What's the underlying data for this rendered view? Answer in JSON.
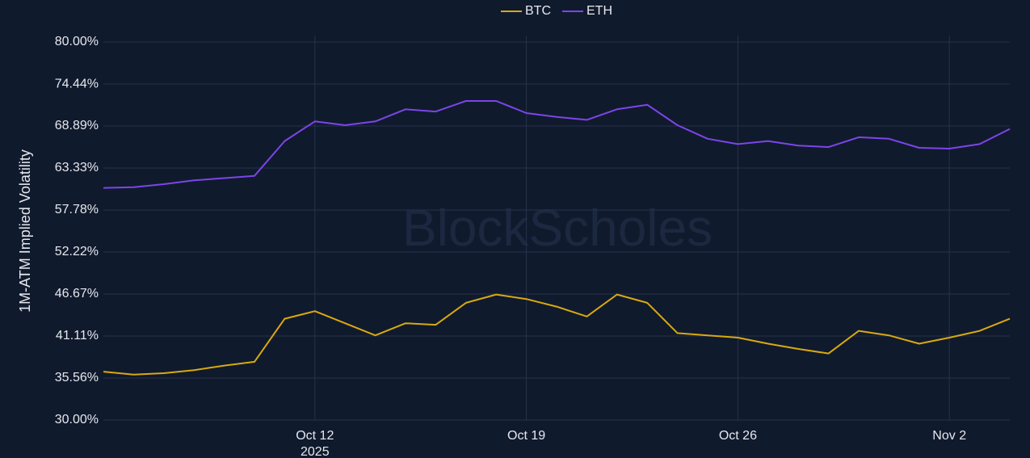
{
  "chart_data": {
    "type": "line",
    "y_label": "1M-ATM Implied Volatility",
    "watermark": "BlockScholes",
    "x": [
      "2025-10-05",
      "2025-10-06",
      "2025-10-07",
      "2025-10-08",
      "2025-10-09",
      "2025-10-10",
      "2025-10-11",
      "2025-10-12",
      "2025-10-13",
      "2025-10-14",
      "2025-10-15",
      "2025-10-16",
      "2025-10-17",
      "2025-10-18",
      "2025-10-19",
      "2025-10-20",
      "2025-10-21",
      "2025-10-22",
      "2025-10-23",
      "2025-10-24",
      "2025-10-25",
      "2025-10-26",
      "2025-10-27",
      "2025-10-28",
      "2025-10-29",
      "2025-10-30",
      "2025-10-31",
      "2025-11-01",
      "2025-11-02",
      "2025-11-03",
      "2025-11-04"
    ],
    "series": [
      {
        "name": "BTC",
        "color": "#d9a90f",
        "values": [
          36.4,
          36.0,
          36.2,
          36.6,
          37.2,
          37.7,
          43.4,
          44.4,
          42.8,
          41.2,
          42.8,
          42.6,
          45.5,
          46.6,
          46.0,
          45.0,
          43.7,
          46.6,
          45.5,
          41.5,
          41.2,
          40.9,
          40.1,
          39.4,
          38.8,
          41.8,
          41.2,
          40.1,
          40.9,
          41.8,
          43.4
        ]
      },
      {
        "name": "ETH",
        "color": "#7c45e8",
        "values": [
          60.7,
          60.8,
          61.2,
          61.7,
          62.0,
          62.3,
          66.9,
          69.5,
          69.0,
          69.5,
          71.1,
          70.8,
          72.2,
          72.2,
          70.6,
          70.1,
          69.7,
          71.1,
          71.7,
          69.0,
          67.2,
          66.5,
          66.9,
          66.3,
          66.1,
          67.4,
          67.2,
          66.0,
          65.9,
          66.5,
          68.5
        ]
      }
    ],
    "xlim": [
      "2025-10-05",
      "2025-11-04"
    ],
    "xticks": [
      {
        "value": "2025-10-12",
        "label": "Oct 12"
      },
      {
        "value": "2025-10-19",
        "label": "Oct 19"
      },
      {
        "value": "2025-10-26",
        "label": "Oct 26"
      },
      {
        "value": "2025-11-02",
        "label": "Nov 2"
      }
    ],
    "xtick_year": "2025",
    "ylim": [
      30,
      80
    ],
    "yticks": [
      {
        "value": 30,
        "label": "30.00%"
      },
      {
        "value": 35.56,
        "label": "35.56%"
      },
      {
        "value": 41.11,
        "label": "41.11%"
      },
      {
        "value": 46.67,
        "label": "46.67%"
      },
      {
        "value": 52.22,
        "label": "52.22%"
      },
      {
        "value": 57.78,
        "label": "57.78%"
      },
      {
        "value": 63.33,
        "label": "63.33%"
      },
      {
        "value": 68.89,
        "label": "68.89%"
      },
      {
        "value": 74.44,
        "label": "74.44%"
      },
      {
        "value": 80,
        "label": "80.00%"
      }
    ],
    "grid": true,
    "legend": "top"
  }
}
